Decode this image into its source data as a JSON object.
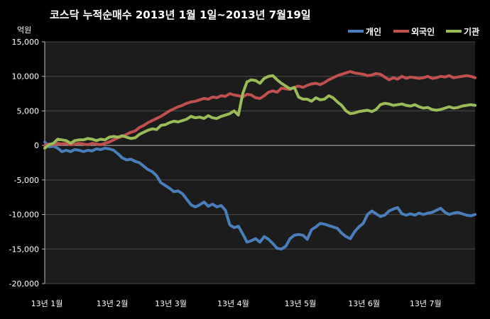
{
  "chart_data": {
    "type": "line",
    "title": "코스닥 누적순매수 2013년 1월 1일~2013년 7월19일",
    "unit_label": "억원",
    "ylim": [
      -20000,
      15000
    ],
    "yticks": [
      "15,000",
      "10,000",
      "5,000",
      "0",
      "-5,000",
      "-10,000",
      "-15,000",
      "-20,000"
    ],
    "ytick_values": [
      15000,
      10000,
      5000,
      0,
      -5000,
      -10000,
      -15000,
      -20000
    ],
    "x_axis": "trading days, 2013-01-02 to 2013-07-19",
    "xlim": [
      0,
      100
    ],
    "xticks": [
      {
        "label": "13년 1월",
        "x": 0
      },
      {
        "label": "13년 2월",
        "x": 15.2
      },
      {
        "label": "13년 3월",
        "x": 28.8
      },
      {
        "label": "13년 4월",
        "x": 43.3
      },
      {
        "label": "13년 5월",
        "x": 58.9
      },
      {
        "label": "13년 6월",
        "x": 73.7
      },
      {
        "label": "13년 7월",
        "x": 88.0
      }
    ],
    "grid": "horizontal",
    "legend_position": "top-right",
    "series": [
      {
        "name": "개인",
        "color": "#4a7ebb",
        "points": [
          [
            0,
            500
          ],
          [
            1,
            -200
          ],
          [
            2,
            -100
          ],
          [
            3,
            -400
          ],
          [
            4,
            -900
          ],
          [
            5,
            -700
          ],
          [
            6,
            -900
          ],
          [
            7,
            -600
          ],
          [
            8,
            -700
          ],
          [
            9,
            -900
          ],
          [
            10,
            -700
          ],
          [
            11,
            -800
          ],
          [
            12,
            -500
          ],
          [
            13,
            -600
          ],
          [
            14,
            -400
          ],
          [
            15,
            -500
          ],
          [
            16,
            -700
          ],
          [
            17,
            -1200
          ],
          [
            18,
            -1800
          ],
          [
            19,
            -2100
          ],
          [
            20,
            -2000
          ],
          [
            21,
            -2300
          ],
          [
            22,
            -2500
          ],
          [
            23,
            -3000
          ],
          [
            24,
            -3500
          ],
          [
            25,
            -3800
          ],
          [
            26,
            -4400
          ],
          [
            27,
            -5400
          ],
          [
            28,
            -5800
          ],
          [
            29,
            -6200
          ],
          [
            30,
            -6700
          ],
          [
            31,
            -6600
          ],
          [
            32,
            -7000
          ],
          [
            33,
            -7800
          ],
          [
            34,
            -8600
          ],
          [
            35,
            -8900
          ],
          [
            36,
            -8600
          ],
          [
            37,
            -8200
          ],
          [
            38,
            -8800
          ],
          [
            39,
            -8500
          ],
          [
            40,
            -8900
          ],
          [
            41,
            -8700
          ],
          [
            42,
            -9400
          ],
          [
            43,
            -11500
          ],
          [
            44,
            -11900
          ],
          [
            45,
            -11700
          ],
          [
            46,
            -12800
          ],
          [
            47,
            -14000
          ],
          [
            48,
            -13800
          ],
          [
            49,
            -13500
          ],
          [
            50,
            -14000
          ],
          [
            51,
            -13200
          ],
          [
            52,
            -13600
          ],
          [
            53,
            -14200
          ],
          [
            54,
            -14900
          ],
          [
            55,
            -15000
          ],
          [
            56,
            -14600
          ],
          [
            57,
            -13500
          ],
          [
            58,
            -13000
          ],
          [
            59,
            -12900
          ],
          [
            60,
            -13000
          ],
          [
            61,
            -13600
          ],
          [
            62,
            -12200
          ],
          [
            63,
            -11800
          ],
          [
            64,
            -11300
          ],
          [
            65,
            -11400
          ],
          [
            66,
            -11600
          ],
          [
            67,
            -11800
          ],
          [
            68,
            -12000
          ],
          [
            69,
            -12700
          ],
          [
            70,
            -13200
          ],
          [
            71,
            -13500
          ],
          [
            72,
            -12500
          ],
          [
            73,
            -11800
          ],
          [
            74,
            -11300
          ],
          [
            75,
            -10000
          ],
          [
            76,
            -9500
          ],
          [
            77,
            -9900
          ],
          [
            78,
            -10300
          ],
          [
            79,
            -10100
          ],
          [
            80,
            -9500
          ],
          [
            81,
            -9200
          ],
          [
            82,
            -9000
          ],
          [
            83,
            -9900
          ],
          [
            84,
            -10100
          ],
          [
            85,
            -9900
          ],
          [
            86,
            -10100
          ],
          [
            87,
            -9800
          ],
          [
            88,
            -10000
          ],
          [
            89,
            -9800
          ],
          [
            90,
            -9700
          ],
          [
            91,
            -9400
          ],
          [
            92,
            -9100
          ],
          [
            93,
            -9700
          ],
          [
            94,
            -10000
          ],
          [
            95,
            -9800
          ],
          [
            96,
            -9700
          ],
          [
            97,
            -9900
          ],
          [
            98,
            -10100
          ],
          [
            99,
            -10200
          ],
          [
            100,
            -10000
          ]
        ]
      },
      {
        "name": "외국인",
        "color": "#c0504d",
        "points": [
          [
            0,
            0
          ],
          [
            1,
            200
          ],
          [
            2,
            100
          ],
          [
            3,
            300
          ],
          [
            4,
            200
          ],
          [
            5,
            300
          ],
          [
            6,
            100
          ],
          [
            7,
            200
          ],
          [
            8,
            300
          ],
          [
            9,
            200
          ],
          [
            10,
            100
          ],
          [
            11,
            300
          ],
          [
            12,
            200
          ],
          [
            13,
            100
          ],
          [
            14,
            300
          ],
          [
            15,
            500
          ],
          [
            16,
            800
          ],
          [
            17,
            1100
          ],
          [
            18,
            1300
          ],
          [
            19,
            1600
          ],
          [
            20,
            1900
          ],
          [
            21,
            2100
          ],
          [
            22,
            2600
          ],
          [
            23,
            2900
          ],
          [
            24,
            3300
          ],
          [
            25,
            3600
          ],
          [
            26,
            3900
          ],
          [
            27,
            4200
          ],
          [
            28,
            4600
          ],
          [
            29,
            5000
          ],
          [
            30,
            5300
          ],
          [
            31,
            5600
          ],
          [
            32,
            5800
          ],
          [
            33,
            6100
          ],
          [
            34,
            6300
          ],
          [
            35,
            6400
          ],
          [
            36,
            6600
          ],
          [
            37,
            6800
          ],
          [
            38,
            6700
          ],
          [
            39,
            7000
          ],
          [
            40,
            6900
          ],
          [
            41,
            7200
          ],
          [
            42,
            7100
          ],
          [
            43,
            7500
          ],
          [
            44,
            7300
          ],
          [
            45,
            7200
          ],
          [
            46,
            7000
          ],
          [
            47,
            7400
          ],
          [
            48,
            7300
          ],
          [
            49,
            6900
          ],
          [
            50,
            6800
          ],
          [
            51,
            7200
          ],
          [
            52,
            7700
          ],
          [
            53,
            7900
          ],
          [
            54,
            7700
          ],
          [
            55,
            8300
          ],
          [
            56,
            8200
          ],
          [
            57,
            8100
          ],
          [
            58,
            8400
          ],
          [
            59,
            8600
          ],
          [
            60,
            8400
          ],
          [
            61,
            8700
          ],
          [
            62,
            8900
          ],
          [
            63,
            9000
          ],
          [
            64,
            8800
          ],
          [
            65,
            9100
          ],
          [
            66,
            9500
          ],
          [
            67,
            9800
          ],
          [
            68,
            10100
          ],
          [
            69,
            10300
          ],
          [
            70,
            10500
          ],
          [
            71,
            10700
          ],
          [
            72,
            10500
          ],
          [
            73,
            10400
          ],
          [
            74,
            10300
          ],
          [
            75,
            10100
          ],
          [
            76,
            10200
          ],
          [
            77,
            10400
          ],
          [
            78,
            10300
          ],
          [
            79,
            9900
          ],
          [
            80,
            9500
          ],
          [
            81,
            9800
          ],
          [
            82,
            9600
          ],
          [
            83,
            10000
          ],
          [
            84,
            9700
          ],
          [
            85,
            9900
          ],
          [
            86,
            9800
          ],
          [
            87,
            9700
          ],
          [
            88,
            9800
          ],
          [
            89,
            10000
          ],
          [
            90,
            9700
          ],
          [
            91,
            9800
          ],
          [
            92,
            10000
          ],
          [
            93,
            9900
          ],
          [
            94,
            10100
          ],
          [
            95,
            9800
          ],
          [
            96,
            9900
          ],
          [
            97,
            10000
          ],
          [
            98,
            10100
          ],
          [
            99,
            10000
          ],
          [
            100,
            9800
          ]
        ]
      },
      {
        "name": "기관",
        "color": "#9bbb59",
        "points": [
          [
            0,
            -400
          ],
          [
            1,
            100
          ],
          [
            2,
            300
          ],
          [
            3,
            900
          ],
          [
            4,
            800
          ],
          [
            5,
            700
          ],
          [
            6,
            300
          ],
          [
            7,
            700
          ],
          [
            8,
            800
          ],
          [
            9,
            800
          ],
          [
            10,
            1000
          ],
          [
            11,
            900
          ],
          [
            12,
            700
          ],
          [
            13,
            900
          ],
          [
            14,
            800
          ],
          [
            15,
            1200
          ],
          [
            16,
            1300
          ],
          [
            17,
            1200
          ],
          [
            18,
            1400
          ],
          [
            19,
            1200
          ],
          [
            20,
            1000
          ],
          [
            21,
            1100
          ],
          [
            22,
            1600
          ],
          [
            23,
            1900
          ],
          [
            24,
            2200
          ],
          [
            25,
            2400
          ],
          [
            26,
            2300
          ],
          [
            27,
            2900
          ],
          [
            28,
            3000
          ],
          [
            29,
            3300
          ],
          [
            30,
            3500
          ],
          [
            31,
            3400
          ],
          [
            32,
            3600
          ],
          [
            33,
            3800
          ],
          [
            34,
            4200
          ],
          [
            35,
            4000
          ],
          [
            36,
            4100
          ],
          [
            37,
            3900
          ],
          [
            38,
            4300
          ],
          [
            39,
            4000
          ],
          [
            40,
            3900
          ],
          [
            41,
            4200
          ],
          [
            42,
            4400
          ],
          [
            43,
            4600
          ],
          [
            44,
            5000
          ],
          [
            45,
            4400
          ],
          [
            46,
            7500
          ],
          [
            47,
            9200
          ],
          [
            48,
            9500
          ],
          [
            49,
            9400
          ],
          [
            50,
            9000
          ],
          [
            51,
            9700
          ],
          [
            52,
            10000
          ],
          [
            53,
            10100
          ],
          [
            54,
            9500
          ],
          [
            55,
            9000
          ],
          [
            56,
            8600
          ],
          [
            57,
            8200
          ],
          [
            58,
            8400
          ],
          [
            59,
            7000
          ],
          [
            60,
            6700
          ],
          [
            61,
            6700
          ],
          [
            62,
            6400
          ],
          [
            63,
            6900
          ],
          [
            64,
            6600
          ],
          [
            65,
            6700
          ],
          [
            66,
            7200
          ],
          [
            67,
            6900
          ],
          [
            68,
            6300
          ],
          [
            69,
            5800
          ],
          [
            70,
            5000
          ],
          [
            71,
            4600
          ],
          [
            72,
            4700
          ],
          [
            73,
            4900
          ],
          [
            74,
            5000
          ],
          [
            75,
            5100
          ],
          [
            76,
            4900
          ],
          [
            77,
            5200
          ],
          [
            78,
            5900
          ],
          [
            79,
            6100
          ],
          [
            80,
            6000
          ],
          [
            81,
            5800
          ],
          [
            82,
            5900
          ],
          [
            83,
            6000
          ],
          [
            84,
            5800
          ],
          [
            85,
            5700
          ],
          [
            86,
            5900
          ],
          [
            87,
            5600
          ],
          [
            88,
            5400
          ],
          [
            89,
            5500
          ],
          [
            90,
            5200
          ],
          [
            91,
            5100
          ],
          [
            92,
            5200
          ],
          [
            93,
            5400
          ],
          [
            94,
            5600
          ],
          [
            95,
            5400
          ],
          [
            96,
            5500
          ],
          [
            97,
            5700
          ],
          [
            98,
            5800
          ],
          [
            99,
            5900
          ],
          [
            100,
            5800
          ]
        ]
      }
    ]
  }
}
